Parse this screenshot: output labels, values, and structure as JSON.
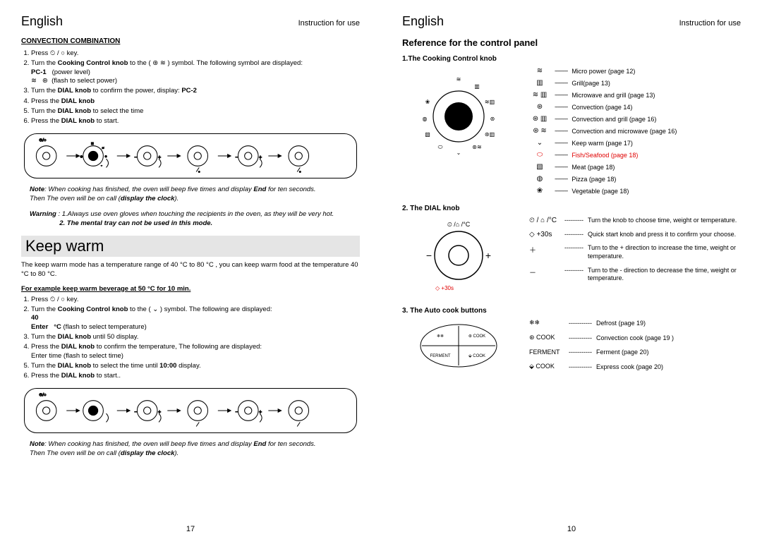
{
  "left": {
    "lang": "English",
    "header": "Instruction for use",
    "conv_title": "CONVECTION COMBINATION",
    "conv_steps": [
      "Press  ⏲ / ○  key.",
      "Turn the  <b>Cooking Control knob</b>  to the ( ⊛ ≋ ) symbol. The  following symbol are displayed:<br><b>PC-1</b>&nbsp;&nbsp;&nbsp;(power level)<br>≋ &nbsp; ⊛ &nbsp;(flash to select power)",
      "Turn the  <b>DIAL knob</b> to confirm the  power, display: <b>PC-2</b>",
      "Press the <b>DIAL knob</b>",
      "Turn the <b>DIAL knob</b> to select the  time",
      "Press the  <b>DIAL knob</b> to start."
    ],
    "note1": "<b>Note</b>: When cooking has finished, the oven will beep five times and display  <b>End</b> for ten seconds.<br>Then The oven will be on call (<b>display the clock</b>).",
    "warning": "<b><i>Warning</i></b>  : 1.Always use oven gloves when  touching the recipients in the oven, as they will be  very hot.<br>&nbsp;&nbsp;&nbsp;&nbsp;&nbsp;&nbsp;&nbsp;&nbsp;&nbsp;&nbsp;&nbsp;&nbsp;&nbsp;&nbsp;&nbsp;&nbsp;<b>2. The mental tray can  not be used in this mode.</b>",
    "keepwarm_title": "Keep warm",
    "keepwarm_body": "The keep warm mode has a temperature range of 40 °C to 80 °C , you can keep warm food at the temperature 40 °C to 80 °C.",
    "example_heading": "For example keep warm beverage at 50 °C for 10 min.",
    "keepwarm_steps": [
      "Press  ⏲ / ○  key.",
      "Turn the  <b>Cooking Control knob</b>  to the ( ⌄ ) symbol. The  following are displayed:<br><b>40</b><br><b>Enter &nbsp; °C</b> (flash to select  temperature)",
      "Turn the  <b>DIAL knob</b>  until 50 display.",
      "Press the  <b>DIAL knob</b> to confirm the  temperature, The following  are displayed:<br>Enter  time (flash  to select time)",
      "Turn the  <b>DIAL knob</b> to select the  time until <b>10:00</b> display.",
      "Press the  <b>DIAL knob</b>  to start.."
    ],
    "note2": "<b>Note</b>: When cooking has finished, the oven will beep five times and display  <b>End</b> for ten seconds.<br>Then The oven will be on call (<b>display the clock</b>).",
    "pagenum": "17"
  },
  "right": {
    "lang": "English",
    "header": "Instruction for use",
    "ref_title": "Reference for the control panel",
    "sub1": "1.The Cooking Control knob",
    "cook_items": [
      {
        "icon": "≋",
        "label": "Micro power (page 12)",
        "red": false
      },
      {
        "icon": "▥",
        "label": "Grill(page 13)",
        "red": false
      },
      {
        "icon": "≋ ▥",
        "label": "Microwave and grill (page 13)",
        "red": false
      },
      {
        "icon": "⊛",
        "label": "Convection (page 14)",
        "red": false
      },
      {
        "icon": "⊛ ▥",
        "label": "Convection and grill (page 16)",
        "red": false
      },
      {
        "icon": "⊛ ≋",
        "label": "Convection and microwave (page 16)",
        "red": false
      },
      {
        "icon": "⌄",
        "label": "Keep warm (page 17)",
        "red": false
      },
      {
        "icon": "⬭",
        "label": "Fish/Seafood (page 18)",
        "red": true
      },
      {
        "icon": "▧",
        "label": "Meat (page 18)",
        "red": false
      },
      {
        "icon": "◍",
        "label": "Pizza (page 18)",
        "red": false
      },
      {
        "icon": "❀",
        "label": "Vegetable (page 18)",
        "red": false
      }
    ],
    "sub2": "2.  The DIAL knob",
    "dial_items": [
      {
        "icon": "⏲ / ⌂ /°C",
        "label": "Turn the knob to choose time, weight or temperature."
      },
      {
        "icon": "◇ +30s",
        "label": "Quick start knob and press it to confirm your choose."
      },
      {
        "icon": "＋",
        "label": "Turn to the + direction to increase the time, weight or temperature."
      },
      {
        "icon": "－",
        "label": "Turn to the - direction to decrease the time, weight or temperature."
      }
    ],
    "sub3": "3. The Auto cook buttons",
    "auto_items": [
      {
        "icon": "❄❄",
        "label": "Defrost (page 19)"
      },
      {
        "icon": "⊛ COOK",
        "label": "Convection cook (page 19 )"
      },
      {
        "icon": "FERMENT",
        "label": "Ferment (page 20)"
      },
      {
        "icon": "⬙ COOK",
        "label": "Express cook (page 20)"
      }
    ],
    "pagenum": "10"
  },
  "colors": {
    "banner_bg": "#e5e5e5",
    "red": "#e00000",
    "dash": "-----------"
  }
}
